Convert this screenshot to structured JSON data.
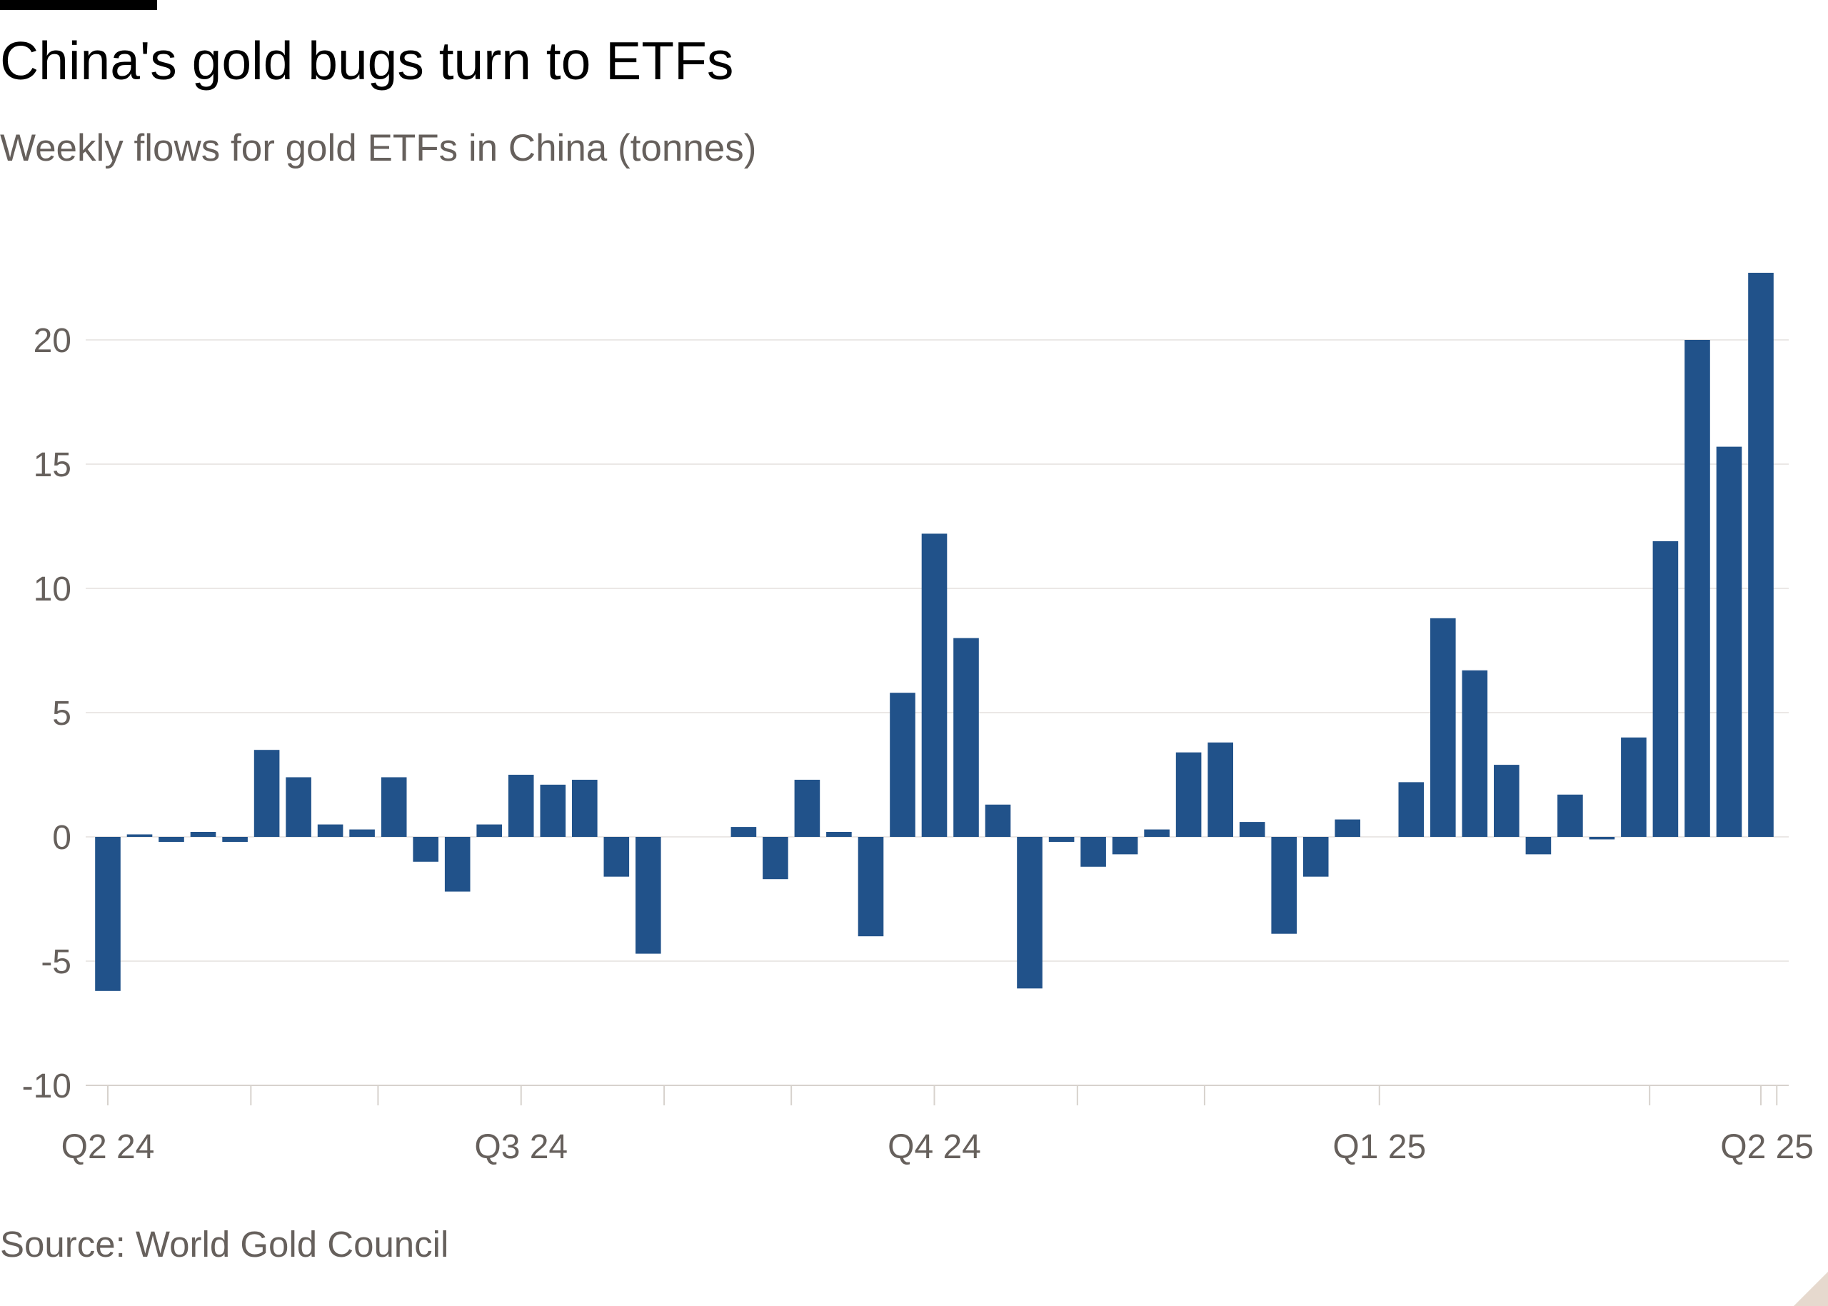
{
  "header": {
    "title": "China's gold bugs turn to ETFs",
    "subtitle": "Weekly flows for gold ETFs in China (tonnes)"
  },
  "footer": {
    "source": "Source: World Gold Council"
  },
  "colors": {
    "bar": "#21528a",
    "grid": "#ebe8e6",
    "axis_text": "#66605c",
    "title_text": "#000000"
  },
  "chart_data": {
    "type": "bar",
    "title": "China's gold bugs turn to ETFs",
    "subtitle": "Weekly flows for gold ETFs in China (tonnes)",
    "xlabel": "",
    "ylabel": "",
    "ylim": [
      -10,
      23
    ],
    "yticks": [
      -10,
      -5,
      0,
      5,
      10,
      15,
      20
    ],
    "grid": true,
    "x_tick_labels": [
      {
        "index": 0,
        "label": "Q2 24"
      },
      {
        "index": 13,
        "label": "Q3 24"
      },
      {
        "index": 26,
        "label": "Q4 24"
      },
      {
        "index": 40,
        "label": "Q1 25"
      },
      {
        "index": 52,
        "label": "Q2 25"
      }
    ],
    "minor_tick_indices": [
      5,
      9,
      18,
      22,
      31,
      35,
      49,
      53,
      57
    ],
    "series": [
      {
        "values": [
          -6.2,
          0.1,
          -0.2,
          0.2,
          -0.2,
          3.5,
          2.4,
          0.5,
          0.3,
          2.4,
          -1.0,
          -2.2,
          0.5,
          2.5,
          2.1,
          2.3,
          -1.6,
          -4.7,
          null,
          null,
          0.4,
          -1.7,
          2.3,
          0.2,
          -4.0,
          5.8,
          12.2,
          8.0,
          1.3,
          -6.1,
          -0.2,
          -1.2,
          -0.7,
          0.3,
          3.4,
          3.8,
          0.6,
          -3.9,
          -1.6,
          0.7,
          null,
          2.2,
          8.8,
          6.7,
          2.9,
          -0.7,
          1.7,
          -0.1,
          4.0,
          11.9,
          20.0,
          15.7,
          22.7
        ]
      }
    ]
  }
}
